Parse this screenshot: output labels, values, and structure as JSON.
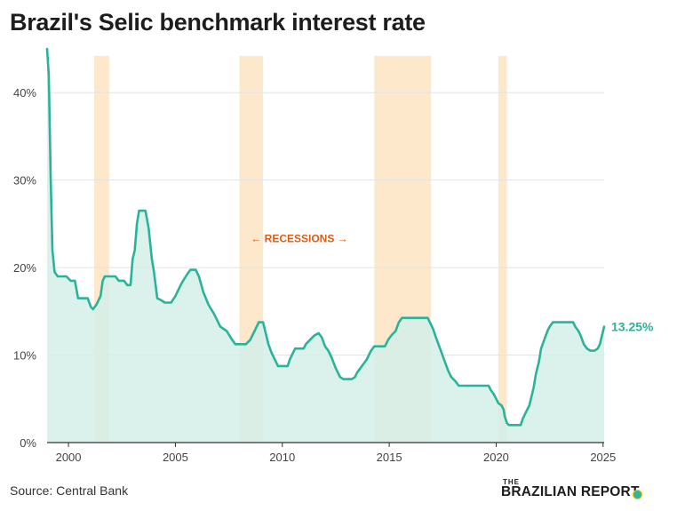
{
  "header": {
    "title": "Brazil's Selic benchmark interest rate"
  },
  "footer": {
    "source": "Source: Central Bank"
  },
  "logo": {
    "the": "THE",
    "name": "BRAZILIAN REPORT"
  },
  "colors": {
    "line": "#2ab39b",
    "area": "#d4efe9",
    "recession": "#fde8cc",
    "annotation": "#e05a12"
  },
  "chart_data": {
    "type": "area",
    "title": "Brazil's Selic benchmark interest rate",
    "xlabel": "",
    "ylabel": "",
    "xlim": [
      1999.0,
      2025.05
    ],
    "ylim": [
      0,
      45
    ],
    "grid": true,
    "x_ticks": [
      2000,
      2005,
      2010,
      2015,
      2020,
      2025
    ],
    "x_tick_labels": [
      "2000",
      "2005",
      "2010",
      "2015",
      "2020",
      "2025"
    ],
    "y_ticks": [
      0,
      10,
      20,
      30,
      40
    ],
    "y_tick_labels": [
      "0%",
      "10%",
      "20%",
      "30%",
      "40%"
    ],
    "recessions": [
      [
        2001.2,
        2001.9
      ],
      [
        2008.0,
        2009.1
      ],
      [
        2014.3,
        2016.95
      ],
      [
        2020.1,
        2020.5
      ]
    ],
    "recession_annotation": "← RECESSIONS →",
    "end_label": "13.25%",
    "series": [
      {
        "values": [
          [
            1999.0,
            45.0
          ],
          [
            1999.08,
            42.0
          ],
          [
            1999.17,
            30.0
          ],
          [
            1999.25,
            22.0
          ],
          [
            1999.35,
            19.5
          ],
          [
            1999.5,
            19.0
          ],
          [
            1999.9,
            19.0
          ],
          [
            2000.1,
            18.5
          ],
          [
            2000.3,
            18.5
          ],
          [
            2000.45,
            16.5
          ],
          [
            2000.9,
            16.5
          ],
          [
            2001.05,
            15.5
          ],
          [
            2001.15,
            15.25
          ],
          [
            2001.3,
            15.75
          ],
          [
            2001.5,
            16.75
          ],
          [
            2001.6,
            18.5
          ],
          [
            2001.7,
            19.0
          ],
          [
            2002.2,
            19.0
          ],
          [
            2002.35,
            18.5
          ],
          [
            2002.6,
            18.5
          ],
          [
            2002.75,
            18.0
          ],
          [
            2002.9,
            18.0
          ],
          [
            2003.0,
            21.0
          ],
          [
            2003.1,
            22.0
          ],
          [
            2003.2,
            25.0
          ],
          [
            2003.3,
            26.5
          ],
          [
            2003.6,
            26.5
          ],
          [
            2003.75,
            24.5
          ],
          [
            2003.9,
            21.0
          ],
          [
            2004.0,
            19.5
          ],
          [
            2004.15,
            16.5
          ],
          [
            2004.35,
            16.25
          ],
          [
            2004.5,
            16.0
          ],
          [
            2004.8,
            16.0
          ],
          [
            2005.0,
            16.75
          ],
          [
            2005.3,
            18.25
          ],
          [
            2005.55,
            19.25
          ],
          [
            2005.7,
            19.75
          ],
          [
            2005.95,
            19.75
          ],
          [
            2006.1,
            19.0
          ],
          [
            2006.3,
            17.25
          ],
          [
            2006.55,
            15.75
          ],
          [
            2006.8,
            14.75
          ],
          [
            2007.1,
            13.25
          ],
          [
            2007.4,
            12.75
          ],
          [
            2007.65,
            11.75
          ],
          [
            2007.8,
            11.25
          ],
          [
            2008.3,
            11.25
          ],
          [
            2008.5,
            11.75
          ],
          [
            2008.7,
            12.75
          ],
          [
            2008.9,
            13.75
          ],
          [
            2009.1,
            13.75
          ],
          [
            2009.2,
            12.75
          ],
          [
            2009.35,
            11.25
          ],
          [
            2009.5,
            10.25
          ],
          [
            2009.7,
            9.25
          ],
          [
            2009.8,
            8.75
          ],
          [
            2010.25,
            8.75
          ],
          [
            2010.35,
            9.5
          ],
          [
            2010.5,
            10.25
          ],
          [
            2010.6,
            10.75
          ],
          [
            2011.0,
            10.75
          ],
          [
            2011.1,
            11.25
          ],
          [
            2011.3,
            11.75
          ],
          [
            2011.5,
            12.25
          ],
          [
            2011.7,
            12.5
          ],
          [
            2011.85,
            12.0
          ],
          [
            2012.0,
            11.0
          ],
          [
            2012.15,
            10.5
          ],
          [
            2012.3,
            9.75
          ],
          [
            2012.5,
            8.5
          ],
          [
            2012.7,
            7.5
          ],
          [
            2012.85,
            7.25
          ],
          [
            2013.25,
            7.25
          ],
          [
            2013.4,
            7.5
          ],
          [
            2013.5,
            8.0
          ],
          [
            2013.65,
            8.5
          ],
          [
            2013.8,
            9.0
          ],
          [
            2013.95,
            9.5
          ],
          [
            2014.15,
            10.5
          ],
          [
            2014.3,
            11.0
          ],
          [
            2014.8,
            11.0
          ],
          [
            2014.95,
            11.75
          ],
          [
            2015.1,
            12.25
          ],
          [
            2015.3,
            12.75
          ],
          [
            2015.45,
            13.75
          ],
          [
            2015.6,
            14.25
          ],
          [
            2016.8,
            14.25
          ],
          [
            2016.9,
            13.75
          ],
          [
            2017.05,
            13.0
          ],
          [
            2017.15,
            12.25
          ],
          [
            2017.3,
            11.25
          ],
          [
            2017.45,
            10.25
          ],
          [
            2017.6,
            9.25
          ],
          [
            2017.75,
            8.25
          ],
          [
            2017.9,
            7.5
          ],
          [
            2018.1,
            7.0
          ],
          [
            2018.25,
            6.5
          ],
          [
            2019.65,
            6.5
          ],
          [
            2019.75,
            6.0
          ],
          [
            2019.9,
            5.5
          ],
          [
            2020.0,
            5.0
          ],
          [
            2020.1,
            4.5
          ],
          [
            2020.25,
            4.25
          ],
          [
            2020.35,
            3.75
          ],
          [
            2020.4,
            3.0
          ],
          [
            2020.5,
            2.25
          ],
          [
            2020.6,
            2.0
          ],
          [
            2021.15,
            2.0
          ],
          [
            2021.25,
            2.75
          ],
          [
            2021.4,
            3.5
          ],
          [
            2021.55,
            4.25
          ],
          [
            2021.65,
            5.25
          ],
          [
            2021.75,
            6.25
          ],
          [
            2021.85,
            7.75
          ],
          [
            2022.0,
            9.25
          ],
          [
            2022.1,
            10.75
          ],
          [
            2022.25,
            11.75
          ],
          [
            2022.4,
            12.75
          ],
          [
            2022.5,
            13.25
          ],
          [
            2022.65,
            13.75
          ],
          [
            2023.6,
            13.75
          ],
          [
            2023.7,
            13.25
          ],
          [
            2023.85,
            12.75
          ],
          [
            2023.95,
            12.25
          ],
          [
            2024.1,
            11.25
          ],
          [
            2024.25,
            10.75
          ],
          [
            2024.4,
            10.5
          ],
          [
            2024.6,
            10.5
          ],
          [
            2024.75,
            10.75
          ],
          [
            2024.85,
            11.25
          ],
          [
            2024.95,
            12.25
          ],
          [
            2025.05,
            13.25
          ]
        ]
      }
    ]
  }
}
